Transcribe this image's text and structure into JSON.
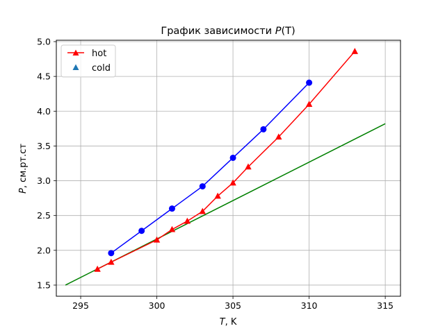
{
  "chart_data": {
    "type": "line",
    "title_prefix": "График зависимости ",
    "title_var": "P",
    "title_arg": "(T)",
    "xlabel_var": "T",
    "xlabel_unit": ", K",
    "ylabel_var": "P",
    "ylabel_unit": ", см.рт.ст",
    "xlim": [
      293.4,
      316.0
    ],
    "ylim": [
      1.34,
      5.02
    ],
    "xticks": [
      295,
      300,
      305,
      310,
      315
    ],
    "yticks": [
      1.5,
      2.0,
      2.5,
      3.0,
      3.5,
      4.0,
      4.5,
      5.0
    ],
    "grid": true,
    "legend_position": "top-left",
    "series": [
      {
        "name": "",
        "color": "#0000ff",
        "marker": "circle",
        "line": true,
        "x": [
          297,
          299,
          301,
          303,
          305,
          307,
          310
        ],
        "y": [
          1.96,
          2.28,
          2.6,
          2.92,
          3.33,
          3.74,
          4.41
        ]
      },
      {
        "name": "hot",
        "color": "#ff0000",
        "marker": "triangle",
        "line": true,
        "x": [
          296.1,
          297,
          300,
          301,
          302,
          303,
          304,
          305,
          306,
          308,
          310,
          313
        ],
        "y": [
          1.73,
          1.83,
          2.15,
          2.3,
          2.42,
          2.56,
          2.78,
          2.97,
          3.2,
          3.63,
          4.1,
          4.86
        ]
      },
      {
        "name": "cold",
        "color": "#1f77b4",
        "marker": "triangle",
        "line": false,
        "x": [],
        "y": []
      },
      {
        "name": "",
        "color": "#008000",
        "marker": "none",
        "line": true,
        "x": [
          294,
          315
        ],
        "y": [
          1.5,
          3.82
        ]
      }
    ]
  }
}
